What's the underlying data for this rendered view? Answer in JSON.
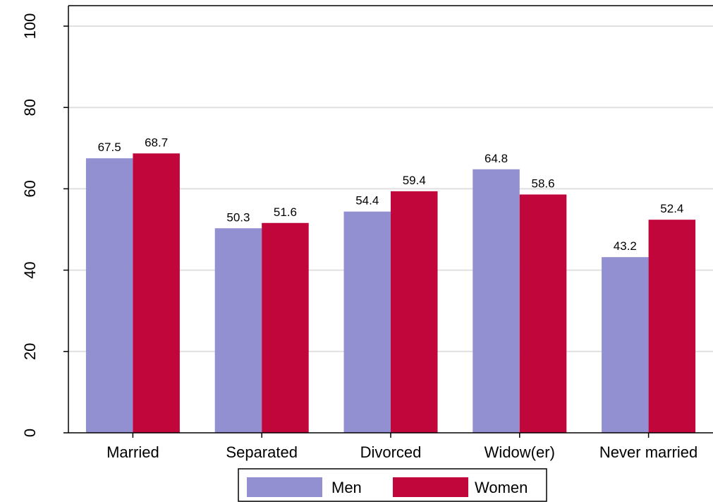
{
  "colors": {
    "men": "#9290d0",
    "women": "#c0063a",
    "gridline": "#e0e0e0",
    "axis": "#000000"
  },
  "chart_data": {
    "type": "bar",
    "categories": [
      "Married",
      "Separated",
      "Divorced",
      "Widow(er)",
      "Never married"
    ],
    "series": [
      {
        "name": "Men",
        "values": [
          67.5,
          50.3,
          54.4,
          64.8,
          43.2
        ],
        "labels": [
          "67.5",
          "50.3",
          "54.4",
          "64.8",
          "43.2"
        ]
      },
      {
        "name": "Women",
        "values": [
          68.7,
          51.6,
          59.4,
          58.6,
          52.4
        ],
        "labels": [
          "68.7",
          "51.6",
          "59.4",
          "58.6",
          "52.4"
        ]
      }
    ],
    "yticks": [
      "0",
      "20",
      "40",
      "60",
      "80",
      "100"
    ],
    "ylim": [
      0,
      100
    ],
    "title": "",
    "xlabel": "",
    "ylabel": "",
    "grid": true,
    "legend_position": "bottom"
  }
}
